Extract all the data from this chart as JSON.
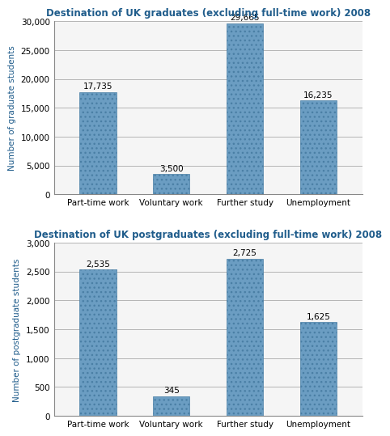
{
  "chart1": {
    "title": "Destination of UK graduates (excluding full-time work) 2008",
    "categories": [
      "Part-time work",
      "Voluntary work",
      "Further study",
      "Unemployment"
    ],
    "values": [
      17735,
      3500,
      29665,
      16235
    ],
    "labels": [
      "17,735",
      "3,500",
      "29,665",
      "16,235"
    ],
    "ylabel": "Number of graduate students",
    "ylim": [
      0,
      30000
    ],
    "yticks": [
      0,
      5000,
      10000,
      15000,
      20000,
      25000,
      30000
    ],
    "ytick_labels": [
      "0",
      "5,000",
      "10,000",
      "15,000",
      "20,000",
      "25,000",
      "30,000"
    ]
  },
  "chart2": {
    "title": "Destination of UK postgraduates (excluding full-time work) 2008",
    "categories": [
      "Part-time work",
      "Voluntary work",
      "Further study",
      "Unemployment"
    ],
    "values": [
      2535,
      345,
      2725,
      1625
    ],
    "labels": [
      "2,535",
      "345",
      "2,725",
      "1,625"
    ],
    "ylabel": "Number of postgraduate students",
    "ylim": [
      0,
      3000
    ],
    "yticks": [
      0,
      500,
      1000,
      1500,
      2000,
      2500,
      3000
    ],
    "ytick_labels": [
      "0",
      "500",
      "1,000",
      "1,500",
      "2,000",
      "2,500",
      "3,000"
    ]
  },
  "bar_color": "#6b9dc2",
  "bar_edgecolor": "#4a7fa5",
  "title_color": "#1f5c8b",
  "ylabel_color": "#1f5c8b",
  "title_fontsize": 8.5,
  "label_fontsize": 7.5,
  "ylabel_fontsize": 7.5,
  "xtick_fontsize": 7.5,
  "ytick_fontsize": 7.5,
  "bg_color": "#f5f5f5"
}
